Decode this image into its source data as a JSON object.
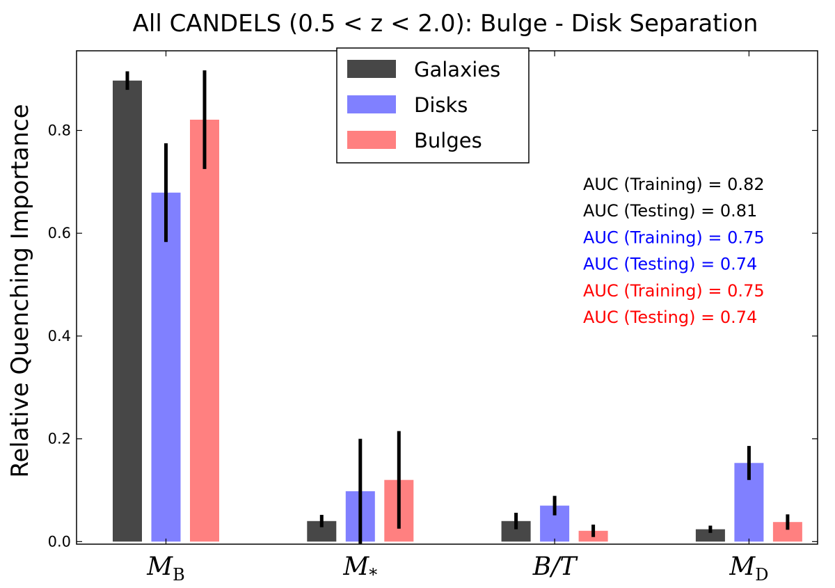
{
  "chart_data": {
    "type": "bar",
    "title": "All CANDELS (0.5 < z < 2.0): Bulge - Disk Separation",
    "ylabel": "Relative Quenching Importance",
    "xlabel": "",
    "ylim": [
      -0.005,
      0.955
    ],
    "yticks": [
      {
        "value": 0.0,
        "label": "0.0"
      },
      {
        "value": 0.2,
        "label": "0.2"
      },
      {
        "value": 0.4,
        "label": "0.4"
      },
      {
        "value": 0.6,
        "label": "0.6"
      },
      {
        "value": 0.8,
        "label": "0.8"
      }
    ],
    "categories": [
      {
        "symbol": "M",
        "sub": "B"
      },
      {
        "symbol": "M",
        "sub": "*"
      },
      {
        "symbol": "B/T",
        "sub": ""
      },
      {
        "symbol": "M",
        "sub": "D"
      }
    ],
    "series": [
      {
        "name": "Galaxies",
        "color": "#474747",
        "values": [
          0.897,
          0.04,
          0.04,
          0.024
        ],
        "errors": [
          0.018,
          0.012,
          0.016,
          0.007
        ]
      },
      {
        "name": "Disks",
        "color": "#8080ff",
        "values": [
          0.679,
          0.098,
          0.07,
          0.153
        ],
        "errors": [
          0.096,
          0.102,
          0.019,
          0.033
        ]
      },
      {
        "name": "Bulges",
        "color": "#ff8080",
        "values": [
          0.821,
          0.12,
          0.021,
          0.038
        ],
        "errors": [
          0.096,
          0.095,
          0.012,
          0.015
        ]
      }
    ],
    "legend": {
      "position": "top-center"
    },
    "grid": false,
    "annotations": [
      {
        "text": "AUC (Training) = 0.82",
        "color": "#000000"
      },
      {
        "text": "AUC (Testing) = 0.81",
        "color": "#000000"
      },
      {
        "text": "AUC (Training) = 0.75",
        "color": "#0000ff"
      },
      {
        "text": "AUC (Testing) = 0.74",
        "color": "#0000ff"
      },
      {
        "text": "AUC (Training) = 0.75",
        "color": "#ff0000"
      },
      {
        "text": "AUC (Testing) = 0.74",
        "color": "#ff0000"
      }
    ]
  }
}
